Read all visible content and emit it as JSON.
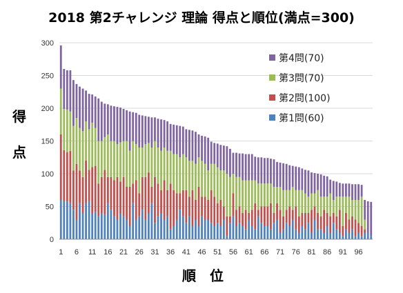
{
  "chart_data": {
    "type": "bar",
    "stacked": true,
    "title": "2018 第2チャレンジ 理論 得点と順位(満点=300)",
    "xlabel": "順　位",
    "ylabel": [
      "得",
      "点"
    ],
    "ylim": [
      0,
      300
    ],
    "yticks": [
      0,
      50,
      100,
      150,
      200,
      250,
      300
    ],
    "xtick_labels": [
      "1",
      "6",
      "11",
      "16",
      "21",
      "26",
      "31",
      "36",
      "41",
      "46",
      "51",
      "56",
      "61",
      "66",
      "71",
      "76",
      "81",
      "86",
      "91",
      "96"
    ],
    "legend_position": "top-right",
    "totals": [
      296,
      260,
      258,
      258,
      243,
      237,
      233,
      230,
      227,
      222,
      221,
      218,
      215,
      210,
      207,
      206,
      204,
      203,
      202,
      201,
      199,
      197,
      195,
      194,
      193,
      190,
      189,
      188,
      187,
      186,
      186,
      184,
      183,
      182,
      180,
      176,
      175,
      174,
      173,
      172,
      168,
      167,
      166,
      164,
      160,
      158,
      157,
      155,
      149,
      147,
      146,
      144,
      143,
      142,
      138,
      132,
      132,
      131,
      131,
      130,
      130,
      130,
      126,
      125,
      125,
      124,
      124,
      123,
      122,
      118,
      117,
      116,
      115,
      113,
      112,
      111,
      110,
      108,
      106,
      105,
      102,
      101,
      100,
      99,
      97,
      96,
      91,
      89,
      88,
      86,
      85,
      85,
      85,
      84,
      84,
      84,
      83,
      60,
      58,
      57
    ],
    "series": [
      {
        "name": "第1問(60)",
        "color": "#4f81bd",
        "values": [
          60,
          58,
          58,
          55,
          45,
          30,
          55,
          40,
          55,
          58,
          40,
          42,
          35,
          40,
          38,
          55,
          45,
          35,
          30,
          40,
          35,
          30,
          20,
          55,
          30,
          35,
          45,
          30,
          40,
          55,
          25,
          35,
          40,
          30,
          35,
          15,
          20,
          30,
          45,
          35,
          25,
          35,
          20,
          30,
          20,
          35,
          30,
          30,
          25,
          20,
          25,
          20,
          30,
          5,
          25,
          35,
          20,
          25,
          20,
          15,
          30,
          20,
          15,
          35,
          25,
          20,
          20,
          15,
          25,
          30,
          10,
          15,
          25,
          20,
          30,
          15,
          10,
          20,
          15,
          25,
          10,
          30,
          15,
          15,
          10,
          20,
          10,
          25,
          15,
          10,
          5,
          15,
          10,
          15,
          5,
          10,
          5,
          10,
          10,
          5
        ]
      },
      {
        "name": "第2問(100)",
        "color": "#c0504d",
        "values": [
          100,
          78,
          75,
          80,
          60,
          85,
          50,
          55,
          65,
          48,
          70,
          70,
          50,
          55,
          68,
          40,
          50,
          55,
          65,
          48,
          60,
          50,
          60,
          30,
          60,
          35,
          50,
          65,
          62,
          25,
          70,
          50,
          35,
          60,
          40,
          70,
          55,
          40,
          25,
          40,
          50,
          30,
          55,
          30,
          60,
          30,
          35,
          30,
          50,
          45,
          30,
          40,
          20,
          30,
          10,
          35,
          25,
          25,
          20,
          30,
          10,
          25,
          40,
          10,
          25,
          30,
          30,
          40,
          15,
          25,
          35,
          20,
          20,
          30,
          15,
          35,
          25,
          20,
          25,
          15,
          35,
          20,
          25,
          20,
          35,
          20,
          25,
          15,
          20,
          35,
          15,
          25,
          20,
          20,
          25,
          15,
          15,
          5,
          0,
          0
        ]
      },
      {
        "name": "第3問(70)",
        "color": "#9bbb59",
        "values": [
          70,
          63,
          65,
          60,
          68,
          70,
          65,
          70,
          60,
          62,
          68,
          58,
          65,
          55,
          50,
          65,
          55,
          60,
          50,
          60,
          55,
          70,
          55,
          65,
          55,
          70,
          45,
          50,
          45,
          60,
          55,
          55,
          60,
          50,
          60,
          50,
          55,
          60,
          55,
          55,
          50,
          55,
          45,
          55,
          45,
          55,
          50,
          45,
          40,
          50,
          55,
          45,
          55,
          65,
          60,
          30,
          50,
          45,
          50,
          45,
          50,
          45,
          35,
          40,
          35,
          35,
          35,
          30,
          40,
          25,
          35,
          40,
          30,
          25,
          35,
          25,
          40,
          35,
          30,
          25,
          25,
          20,
          35,
          30,
          20,
          25,
          35,
          20,
          30,
          20,
          45,
          25,
          35,
          25,
          30,
          35,
          45,
          15,
          0,
          0
        ]
      },
      {
        "name": "第4問(70)",
        "color": "#8064a2",
        "values": [
          66,
          61,
          60,
          63,
          70,
          52,
          63,
          65,
          47,
          54,
          43,
          48,
          65,
          60,
          51,
          46,
          54,
          53,
          57,
          53,
          49,
          47,
          60,
          44,
          48,
          50,
          49,
          43,
          40,
          46,
          36,
          44,
          48,
          42,
          45,
          41,
          45,
          44,
          48,
          42,
          43,
          47,
          46,
          49,
          35,
          38,
          42,
          50,
          34,
          32,
          36,
          39,
          38,
          42,
          43,
          32,
          37,
          36,
          41,
          40,
          40,
          40,
          36,
          40,
          40,
          39,
          39,
          38,
          42,
          38,
          37,
          41,
          40,
          38,
          32,
          36,
          35,
          33,
          36,
          40,
          32,
          31,
          25,
          34,
          32,
          31,
          21,
          29,
          23,
          21,
          20,
          20,
          20,
          24,
          24,
          24,
          18,
          30,
          48,
          52
        ]
      }
    ]
  }
}
